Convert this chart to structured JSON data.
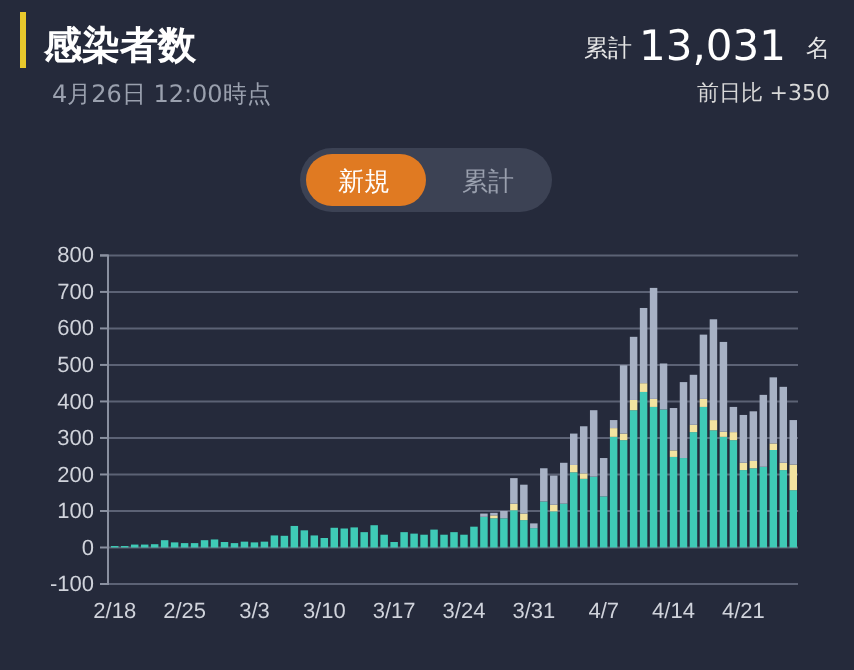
{
  "chart_data": {
    "type": "bar",
    "stacked": true,
    "title": "感染者数",
    "subtitle": "4月26日 12:00時点",
    "annotations": [
      "累計",
      "13,031",
      "名",
      "前日比 +350",
      "新規",
      "累計"
    ],
    "categories": [
      "2/18",
      null,
      null,
      null,
      null,
      null,
      null,
      "2/25",
      null,
      null,
      null,
      null,
      null,
      null,
      "3/3",
      null,
      null,
      null,
      null,
      null,
      null,
      "3/10",
      null,
      null,
      null,
      null,
      null,
      null,
      "3/17",
      null,
      null,
      null,
      null,
      null,
      null,
      "3/24",
      null,
      null,
      null,
      null,
      null,
      null,
      "3/31",
      null,
      null,
      null,
      null,
      null,
      null,
      "4/7",
      null,
      null,
      null,
      null,
      null,
      null,
      "4/14",
      null,
      null,
      null,
      null,
      null,
      null,
      "4/21",
      null,
      null,
      null,
      null,
      null
    ],
    "series": [
      {
        "color": "#3fcab6",
        "values": [
          4,
          4,
          8,
          8,
          9,
          20,
          14,
          12,
          12,
          20,
          22,
          15,
          12,
          16,
          14,
          16,
          33,
          32,
          59,
          47,
          33,
          26,
          54,
          52,
          55,
          42,
          61,
          35,
          15,
          42,
          38,
          35,
          49,
          35,
          42,
          35,
          57,
          84,
          80,
          80,
          102,
          75,
          53,
          126,
          99,
          120,
          206,
          188,
          194,
          140,
          303,
          294,
          376,
          426,
          385,
          378,
          248,
          245,
          316,
          385,
          321,
          303,
          294,
          212,
          217,
          221,
          267,
          212,
          157
        ]
      },
      {
        "color": "#f3e3a0",
        "values": [
          0,
          0,
          0,
          0,
          0,
          0,
          0,
          0,
          0,
          0,
          0,
          0,
          0,
          0,
          0,
          0,
          0,
          0,
          0,
          0,
          0,
          0,
          0,
          0,
          0,
          0,
          0,
          0,
          0,
          0,
          0,
          0,
          0,
          0,
          0,
          0,
          0,
          0,
          8,
          0,
          18,
          18,
          0,
          0,
          18,
          0,
          20,
          15,
          0,
          0,
          24,
          18,
          28,
          24,
          22,
          0,
          18,
          0,
          20,
          22,
          28,
          14,
          22,
          20,
          20,
          0,
          18,
          20,
          70
        ]
      },
      {
        "color": "#a7b1c4",
        "values": [
          0,
          0,
          0,
          0,
          0,
          0,
          0,
          0,
          0,
          0,
          0,
          0,
          0,
          0,
          0,
          0,
          0,
          0,
          0,
          0,
          0,
          0,
          0,
          0,
          0,
          0,
          0,
          0,
          0,
          0,
          0,
          0,
          0,
          0,
          0,
          0,
          0,
          9,
          7,
          20,
          70,
          79,
          13,
          91,
          80,
          112,
          86,
          129,
          182,
          105,
          22,
          187,
          173,
          206,
          304,
          126,
          116,
          208,
          137,
          176,
          276,
          246,
          69,
          131,
          136,
          197,
          181,
          208,
          122
        ]
      }
    ],
    "ylim": [
      -100,
      800
    ],
    "yticks": [
      -100,
      0,
      100,
      200,
      300,
      400,
      500,
      600,
      700,
      800
    ],
    "grid": "y"
  }
}
